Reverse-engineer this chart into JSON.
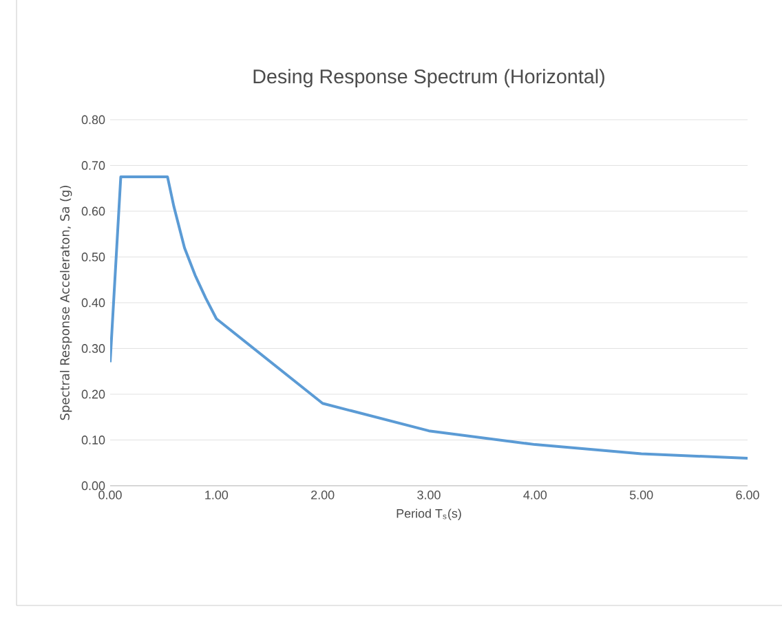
{
  "chart_data": {
    "type": "line",
    "title": "Desing Response Spectrum (Horizontal)",
    "xlabel": "Period T$_{s}$(s)",
    "ylabel": "Spectral Response Acceleraton, Sa (g)",
    "x": [
      0,
      0.1,
      0.54,
      0.6,
      0.7,
      0.8,
      0.9,
      1.0,
      2.0,
      3.0,
      4.0,
      5.0,
      6.0
    ],
    "series": [
      {
        "color": "#5b9bd5",
        "values": [
          0.27,
          0.675,
          0.675,
          0.61,
          0.52,
          0.46,
          0.41,
          0.365,
          0.18,
          0.12,
          0.09,
          0.07,
          0.06
        ]
      }
    ],
    "xlim": [
      0,
      6
    ],
    "ylim": [
      0,
      0.8
    ],
    "xticks": [
      {
        "value": 0,
        "label": "0.00"
      },
      {
        "value": 1,
        "label": "1.00"
      },
      {
        "value": 2,
        "label": "2.00"
      },
      {
        "value": 3,
        "label": "3.00"
      },
      {
        "value": 4,
        "label": "4.00"
      },
      {
        "value": 5,
        "label": "5.00"
      },
      {
        "value": 6,
        "label": "6.00"
      }
    ],
    "yticks": [
      {
        "value": 0,
        "label": "0.00"
      },
      {
        "value": 0.1,
        "label": "0.10"
      },
      {
        "value": 0.2,
        "label": "0.20"
      },
      {
        "value": 0.3,
        "label": "0.30"
      },
      {
        "value": 0.4,
        "label": "0.40"
      },
      {
        "value": 0.5,
        "label": "0.50"
      },
      {
        "value": 0.6,
        "label": "0.60"
      },
      {
        "value": 0.7,
        "label": "0.70"
      },
      {
        "value": 0.8,
        "label": "0.80"
      }
    ],
    "grid": "y",
    "marker": "none",
    "line_style": "solid"
  }
}
